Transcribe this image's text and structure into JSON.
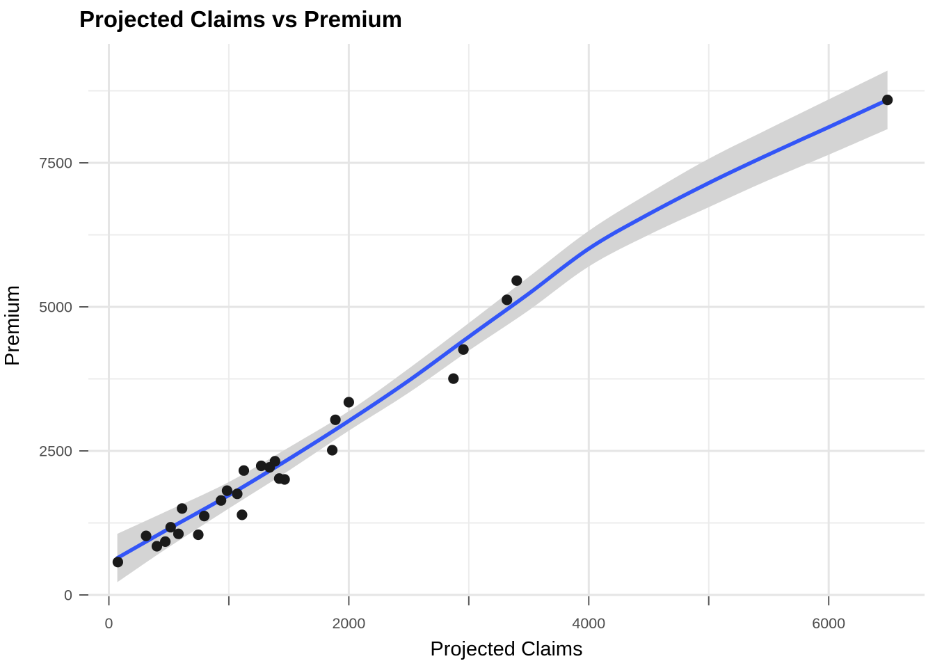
{
  "chart_data": {
    "type": "scatter",
    "title": "Projected Claims vs Premium",
    "xlabel": "Projected Claims",
    "ylabel": "Premium",
    "x_ticks": [
      0,
      2000,
      4000,
      6000
    ],
    "x_minor_ticks": [
      1000,
      3000,
      5000
    ],
    "y_ticks": [
      0,
      2500,
      5000,
      7500
    ],
    "y_minor_ticks": [
      1250,
      3750,
      6250,
      8750
    ],
    "xlim": [
      -250,
      6800
    ],
    "ylim": [
      -30,
      9590
    ],
    "grid": true,
    "legend": "none",
    "points": [
      [
        75,
        570
      ],
      [
        310,
        1025
      ],
      [
        400,
        845
      ],
      [
        470,
        925
      ],
      [
        515,
        1175
      ],
      [
        580,
        1060
      ],
      [
        610,
        1500
      ],
      [
        745,
        1045
      ],
      [
        795,
        1370
      ],
      [
        935,
        1640
      ],
      [
        985,
        1810
      ],
      [
        1070,
        1755
      ],
      [
        1110,
        1390
      ],
      [
        1125,
        2160
      ],
      [
        1270,
        2240
      ],
      [
        1340,
        2215
      ],
      [
        1385,
        2320
      ],
      [
        1420,
        2020
      ],
      [
        1465,
        2005
      ],
      [
        1862,
        2512
      ],
      [
        1888,
        3040
      ],
      [
        2000,
        3345
      ],
      [
        2872,
        3755
      ],
      [
        2955,
        4260
      ],
      [
        3318,
        5122
      ],
      [
        3400,
        5455
      ],
      [
        6490,
        8592
      ]
    ],
    "smooth_line": {
      "x": [
        70,
        500,
        1000,
        1500,
        2000,
        2500,
        3000,
        3500,
        4000,
        4500,
        5000,
        5500,
        6000,
        6490
      ],
      "y": [
        640,
        1150,
        1730,
        2360,
        3020,
        3720,
        4480,
        5230,
        6010,
        6610,
        7150,
        7645,
        8120,
        8592
      ]
    },
    "ribbon": {
      "x": [
        70,
        500,
        1000,
        1500,
        2000,
        2500,
        3000,
        3500,
        4000,
        4500,
        5000,
        5500,
        6000,
        6490
      ],
      "upper": [
        1060,
        1470,
        1960,
        2560,
        3190,
        3930,
        4720,
        5520,
        6320,
        6970,
        7570,
        8090,
        8600,
        9100
      ],
      "lower": [
        220,
        830,
        1500,
        2160,
        2850,
        3510,
        4240,
        4940,
        5700,
        6250,
        6730,
        7200,
        7640,
        8084
      ]
    },
    "colors": {
      "smooth_line": "#3355F7",
      "confidence_band": "#D4D4D4",
      "point": "#1A1A1A",
      "grid_major": "#E5E5E5",
      "grid_minor": "#ECECEC",
      "tick_label": "#4D4D4D",
      "tick_mark": "#595959",
      "title": "#000000",
      "axis_title": "#000000",
      "background": "#FFFFFF"
    }
  }
}
